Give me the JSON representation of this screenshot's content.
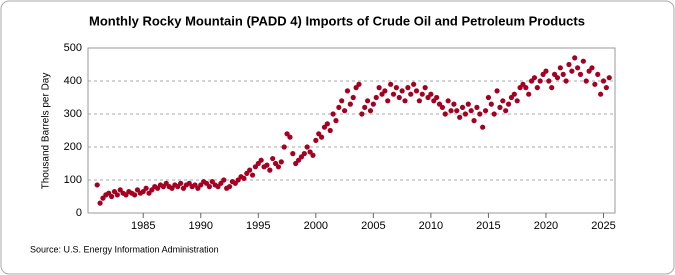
{
  "chart_data": {
    "type": "scatter",
    "title": "Monthly Rocky Mountain (PADD 4) Imports of Crude Oil and Petroleum Products",
    "y_label": "Thousand Barrels per Day",
    "source": "Source: U.S. Energy Information Administration",
    "color": "#a50021",
    "grid": true,
    "xlim": [
      1980.2,
      2026
    ],
    "xticks": [
      1985,
      1990,
      1995,
      2000,
      2005,
      2010,
      2015,
      2020,
      2025
    ],
    "ylim": [
      0,
      500
    ],
    "yticks": [
      0,
      100,
      200,
      300,
      400,
      500
    ],
    "x": [
      1981,
      1981.25,
      1981.5,
      1981.75,
      1982,
      1982.25,
      1982.5,
      1982.75,
      1983,
      1983.25,
      1983.5,
      1983.75,
      1984,
      1984.25,
      1984.5,
      1984.75,
      1985,
      1985.25,
      1985.5,
      1985.75,
      1986,
      1986.25,
      1986.5,
      1986.75,
      1987,
      1987.25,
      1987.5,
      1987.75,
      1988,
      1988.25,
      1988.5,
      1988.75,
      1989,
      1989.25,
      1989.5,
      1989.75,
      1990,
      1990.25,
      1990.5,
      1990.75,
      1991,
      1991.25,
      1991.5,
      1991.75,
      1992,
      1992.25,
      1992.5,
      1992.75,
      1993,
      1993.25,
      1993.5,
      1993.75,
      1994,
      1994.25,
      1994.5,
      1994.75,
      1995,
      1995.25,
      1995.5,
      1995.75,
      1996,
      1996.25,
      1996.5,
      1996.75,
      1997,
      1997.25,
      1997.5,
      1997.75,
      1998,
      1998.25,
      1998.5,
      1998.75,
      1999,
      1999.25,
      1999.5,
      1999.75,
      2000,
      2000.25,
      2000.5,
      2000.75,
      2001,
      2001.25,
      2001.5,
      2001.75,
      2002,
      2002.25,
      2002.5,
      2002.75,
      2003,
      2003.25,
      2003.5,
      2003.75,
      2004,
      2004.25,
      2004.5,
      2004.75,
      2005,
      2005.25,
      2005.5,
      2005.75,
      2006,
      2006.25,
      2006.5,
      2006.75,
      2007,
      2007.25,
      2007.5,
      2007.75,
      2008,
      2008.25,
      2008.5,
      2008.75,
      2009,
      2009.25,
      2009.5,
      2009.75,
      2010,
      2010.25,
      2010.5,
      2010.75,
      2011,
      2011.25,
      2011.5,
      2011.75,
      2012,
      2012.25,
      2012.5,
      2012.75,
      2013,
      2013.25,
      2013.5,
      2013.75,
      2014,
      2014.25,
      2014.5,
      2014.75,
      2015,
      2015.25,
      2015.5,
      2015.75,
      2016,
      2016.25,
      2016.5,
      2016.75,
      2017,
      2017.25,
      2017.5,
      2017.75,
      2018,
      2018.25,
      2018.5,
      2018.75,
      2019,
      2019.25,
      2019.5,
      2019.75,
      2020,
      2020.25,
      2020.5,
      2020.75,
      2021,
      2021.25,
      2021.5,
      2021.75,
      2022,
      2022.25,
      2022.5,
      2022.75,
      2023,
      2023.25,
      2023.5,
      2023.75,
      2024,
      2024.25,
      2024.5,
      2024.75,
      2025,
      2025.25,
      2025.5
    ],
    "values": [
      85,
      30,
      45,
      55,
      60,
      50,
      65,
      55,
      70,
      60,
      55,
      65,
      60,
      55,
      70,
      60,
      65,
      75,
      60,
      70,
      80,
      75,
      85,
      80,
      90,
      80,
      75,
      85,
      80,
      90,
      75,
      85,
      90,
      80,
      85,
      75,
      85,
      95,
      90,
      80,
      95,
      85,
      80,
      90,
      100,
      75,
      80,
      95,
      90,
      100,
      110,
      105,
      120,
      130,
      115,
      140,
      150,
      160,
      140,
      145,
      130,
      165,
      150,
      140,
      155,
      200,
      240,
      230,
      180,
      150,
      160,
      170,
      180,
      200,
      185,
      175,
      220,
      240,
      230,
      260,
      270,
      250,
      300,
      280,
      320,
      340,
      310,
      370,
      330,
      350,
      380,
      390,
      300,
      320,
      340,
      310,
      330,
      350,
      380,
      360,
      370,
      340,
      390,
      360,
      380,
      350,
      370,
      340,
      380,
      360,
      390,
      370,
      340,
      360,
      380,
      350,
      360,
      340,
      350,
      330,
      320,
      300,
      340,
      310,
      330,
      310,
      290,
      320,
      300,
      330,
      310,
      280,
      320,
      300,
      260,
      310,
      350,
      330,
      300,
      370,
      320,
      340,
      310,
      330,
      350,
      360,
      340,
      380,
      390,
      380,
      360,
      400,
      410,
      380,
      400,
      420,
      430,
      400,
      380,
      420,
      410,
      440,
      420,
      400,
      450,
      430,
      470,
      440,
      420,
      460,
      400,
      430,
      440,
      390,
      420,
      360,
      400,
      380,
      410
    ]
  }
}
